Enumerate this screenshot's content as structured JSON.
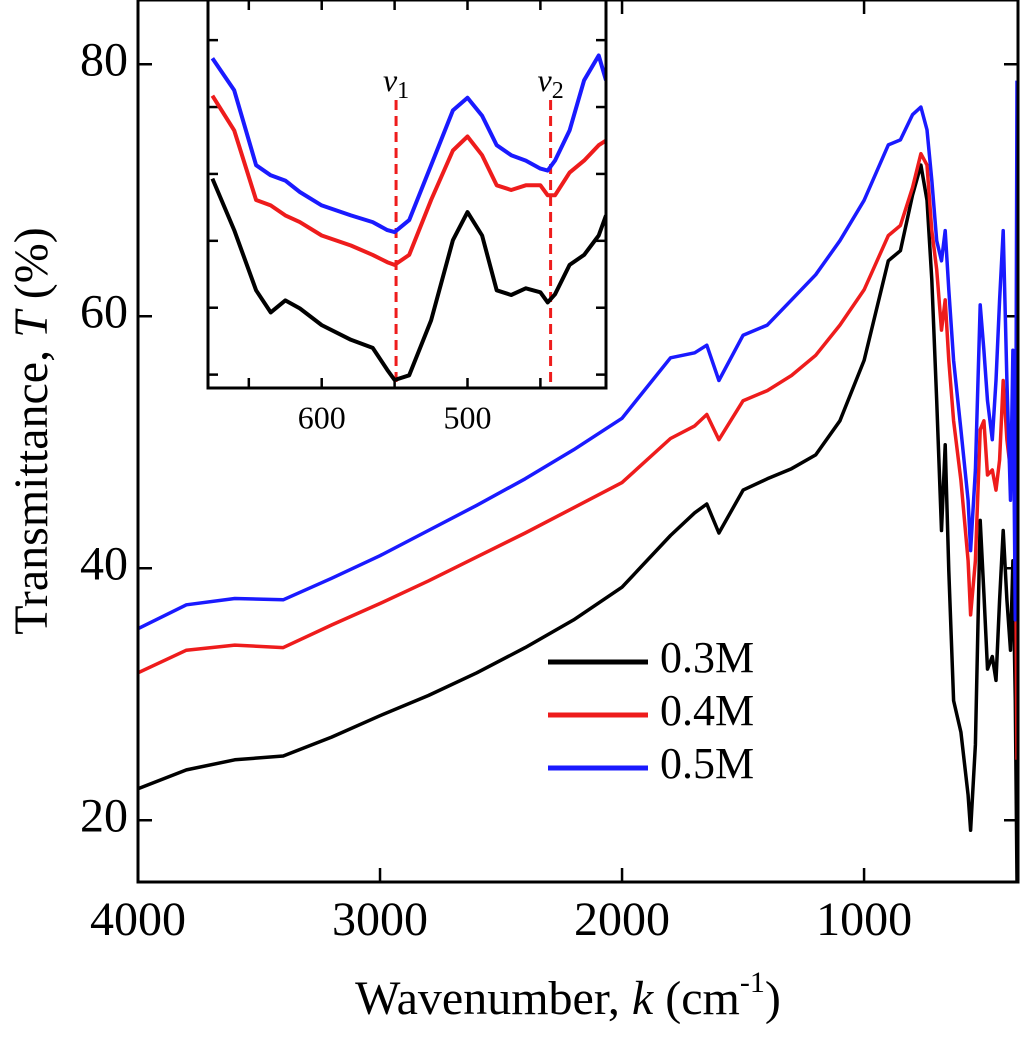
{
  "chart_data": [
    {
      "type": "line",
      "xlabel": [
        "Wavenumber, ",
        "k",
        " (cm",
        "-1",
        ")"
      ],
      "ylabel": [
        "Transmittance,  ",
        "T",
        " (%)"
      ],
      "x": [
        4000,
        3800,
        3600,
        3400,
        3200,
        3000,
        2800,
        2600,
        2400,
        2200,
        2000,
        1800,
        1700,
        1650,
        1600,
        1500,
        1400,
        1300,
        1200,
        1100,
        1000,
        900,
        850,
        800,
        765,
        740,
        720,
        700,
        680,
        665,
        650,
        630,
        600,
        570,
        560,
        540,
        520,
        505,
        490,
        470,
        455,
        440,
        425,
        410,
        395,
        385,
        375,
        368
      ],
      "series": [
        {
          "name": "0.3M",
          "color": "#000000",
          "values": [
            22.5,
            24.0,
            24.8,
            25.1,
            26.6,
            28.3,
            29.9,
            31.7,
            33.7,
            35.9,
            38.5,
            42.6,
            44.4,
            45.1,
            42.8,
            46.2,
            47.1,
            47.9,
            49.0,
            51.7,
            56.5,
            64.4,
            65.2,
            69.6,
            72.0,
            69.2,
            62.9,
            53.3,
            43.0,
            49.8,
            39.8,
            29.5,
            27.0,
            22.0,
            19.2,
            26.0,
            43.8,
            38.0,
            32.0,
            33.0,
            31.1,
            37.5,
            43.0,
            37.5,
            33.5,
            40.6,
            29.5,
            15.2
          ]
        },
        {
          "name": "0.4M",
          "color": "#ee1c1c",
          "values": [
            31.7,
            33.5,
            33.9,
            33.7,
            35.5,
            37.2,
            39.0,
            40.9,
            42.8,
            44.8,
            46.8,
            50.3,
            51.3,
            52.2,
            50.2,
            53.3,
            54.1,
            55.3,
            56.9,
            59.3,
            62.1,
            66.4,
            67.2,
            70.2,
            72.9,
            72.0,
            66.8,
            63.7,
            58.9,
            61.3,
            56.5,
            51.7,
            47.0,
            40.6,
            36.3,
            40.6,
            51.0,
            51.7,
            47.4,
            47.8,
            46.2,
            48.6,
            54.9,
            50.2,
            47.8,
            53.3,
            45.4,
            24.8
          ]
        },
        {
          "name": "0.5M",
          "color": "#1a1aff",
          "values": [
            35.2,
            37.1,
            37.6,
            37.5,
            39.2,
            41.0,
            43.0,
            45.0,
            47.1,
            49.4,
            51.9,
            56.7,
            57.1,
            57.7,
            54.9,
            58.5,
            59.3,
            61.3,
            63.3,
            66.0,
            69.2,
            73.6,
            74.0,
            76.0,
            76.6,
            74.8,
            70.8,
            66.0,
            64.4,
            66.8,
            62.1,
            56.5,
            51.0,
            45.4,
            41.4,
            47.8,
            60.9,
            57.3,
            53.3,
            50.2,
            54.9,
            61.3,
            66.8,
            54.9,
            45.4,
            57.3,
            35.9,
            78.7
          ]
        }
      ],
      "xlim": [
        4000,
        364
      ],
      "ylim": [
        15.1,
        85.1
      ],
      "xticks": [
        4000,
        3000,
        2000,
        1000
      ],
      "yticks": [
        20,
        40,
        60,
        80
      ],
      "legend": "lower right"
    },
    {
      "type": "line",
      "x": [
        675,
        660,
        645,
        635,
        625,
        615,
        600,
        580,
        565,
        555,
        550,
        540,
        525,
        510,
        500,
        490,
        480,
        470,
        460,
        450,
        445,
        440,
        430,
        420,
        410,
        405
      ],
      "series": [
        {
          "color": "#000000",
          "values": [
            31.3,
            23.6,
            14.6,
            11.3,
            13.1,
            11.9,
            9.4,
            7.2,
            6.0,
            2.7,
            1.2,
            1.9,
            10.1,
            22.1,
            26.3,
            22.8,
            14.6,
            13.9,
            14.9,
            14.3,
            12.8,
            14.0,
            18.4,
            19.9,
            22.8,
            25.8
          ]
        },
        {
          "color": "#ee1c1c",
          "values": [
            43.7,
            38.5,
            28.1,
            27.3,
            25.8,
            24.8,
            22.8,
            21.3,
            19.9,
            18.8,
            18.4,
            19.9,
            28.1,
            35.5,
            37.6,
            34.8,
            30.3,
            29.6,
            30.3,
            30.3,
            28.8,
            28.8,
            32.2,
            34.0,
            36.3,
            37.0
          ]
        },
        {
          "color": "#1a1aff",
          "values": [
            49.3,
            44.5,
            33.3,
            31.8,
            31.0,
            29.3,
            27.3,
            25.8,
            24.8,
            23.6,
            23.3,
            25.1,
            33.3,
            41.5,
            43.4,
            40.7,
            36.3,
            34.8,
            34.0,
            32.8,
            32.5,
            34.0,
            38.5,
            46.0,
            49.7,
            46.0
          ]
        }
      ],
      "xlim": [
        678,
        405
      ],
      "ylim": [
        0,
        58
      ],
      "xticks": [
        600,
        500
      ],
      "xminor_ticks": [
        650,
        550,
        450
      ],
      "yticks": [
        2,
        12,
        22,
        32,
        42,
        52
      ],
      "annotations": [
        {
          "text": "v",
          "sub": "1",
          "x": 549
        },
        {
          "text": "v",
          "sub": "2",
          "x": 443
        }
      ],
      "annotation_color": "#ee1c1c"
    }
  ]
}
